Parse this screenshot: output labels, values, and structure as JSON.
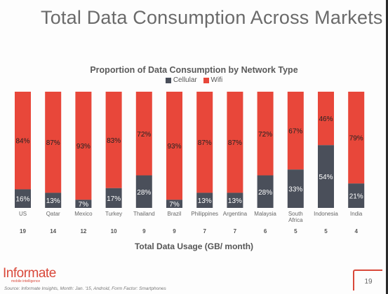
{
  "slide": {
    "title": "Total Data Consumption Across Markets",
    "logo": "Informate",
    "logo_tagline": "mobile intelligence",
    "source": "Source: Informate Insights, Month: Jan. '15, Android, Form Factor: Smartphones",
    "page_number": "19"
  },
  "colors": {
    "cellular": "#4a4f5a",
    "wifi": "#e8473a",
    "accent": "#d9483a"
  },
  "chart_data": {
    "type": "bar",
    "stacked": true,
    "title": "Proportion of Data Consumption by Network Type",
    "xlabel": "Total Data Usage (GB/ month)",
    "ylabel": "",
    "ylim": [
      0,
      100
    ],
    "legend": {
      "position": "top-center",
      "entries": [
        "Cellular",
        "Wifi"
      ]
    },
    "categories": [
      "US",
      "Qatar",
      "Mexico",
      "Turkey",
      "Thailand",
      "Brazil",
      "Philippines",
      "Argentina",
      "Malaysia",
      "South Africa",
      "Indonesia",
      "India"
    ],
    "category_lines": [
      [
        "US"
      ],
      [
        "Qatar"
      ],
      [
        "Mexico"
      ],
      [
        "Turkey"
      ],
      [
        "Thailand"
      ],
      [
        "Brazil"
      ],
      [
        "Philippines"
      ],
      [
        "Argentina"
      ],
      [
        "Malaysia"
      ],
      [
        "South",
        "Africa"
      ],
      [
        "Indonesia"
      ],
      [
        "India"
      ]
    ],
    "data_usage_gb": [
      "19",
      "14",
      "12",
      "10",
      "9",
      "9",
      "7",
      "7",
      "6",
      "5",
      "5",
      "4"
    ],
    "series": [
      {
        "name": "Cellular",
        "values": [
          16,
          13,
          7,
          17,
          28,
          7,
          13,
          13,
          28,
          33,
          54,
          21
        ],
        "labels": [
          "16%",
          "13%",
          "7%",
          "17%",
          "28%",
          "7%",
          "13%",
          "13%",
          "28%",
          "33%",
          "54%",
          "21%"
        ]
      },
      {
        "name": "Wifi",
        "values": [
          84,
          87,
          93,
          83,
          72,
          93,
          87,
          87,
          72,
          67,
          46,
          79
        ],
        "labels": [
          "84%",
          "87%",
          "93%",
          "83%",
          "72%",
          "93%",
          "87%",
          "87%",
          "72%",
          "67%",
          "46%",
          "79%"
        ]
      }
    ]
  }
}
